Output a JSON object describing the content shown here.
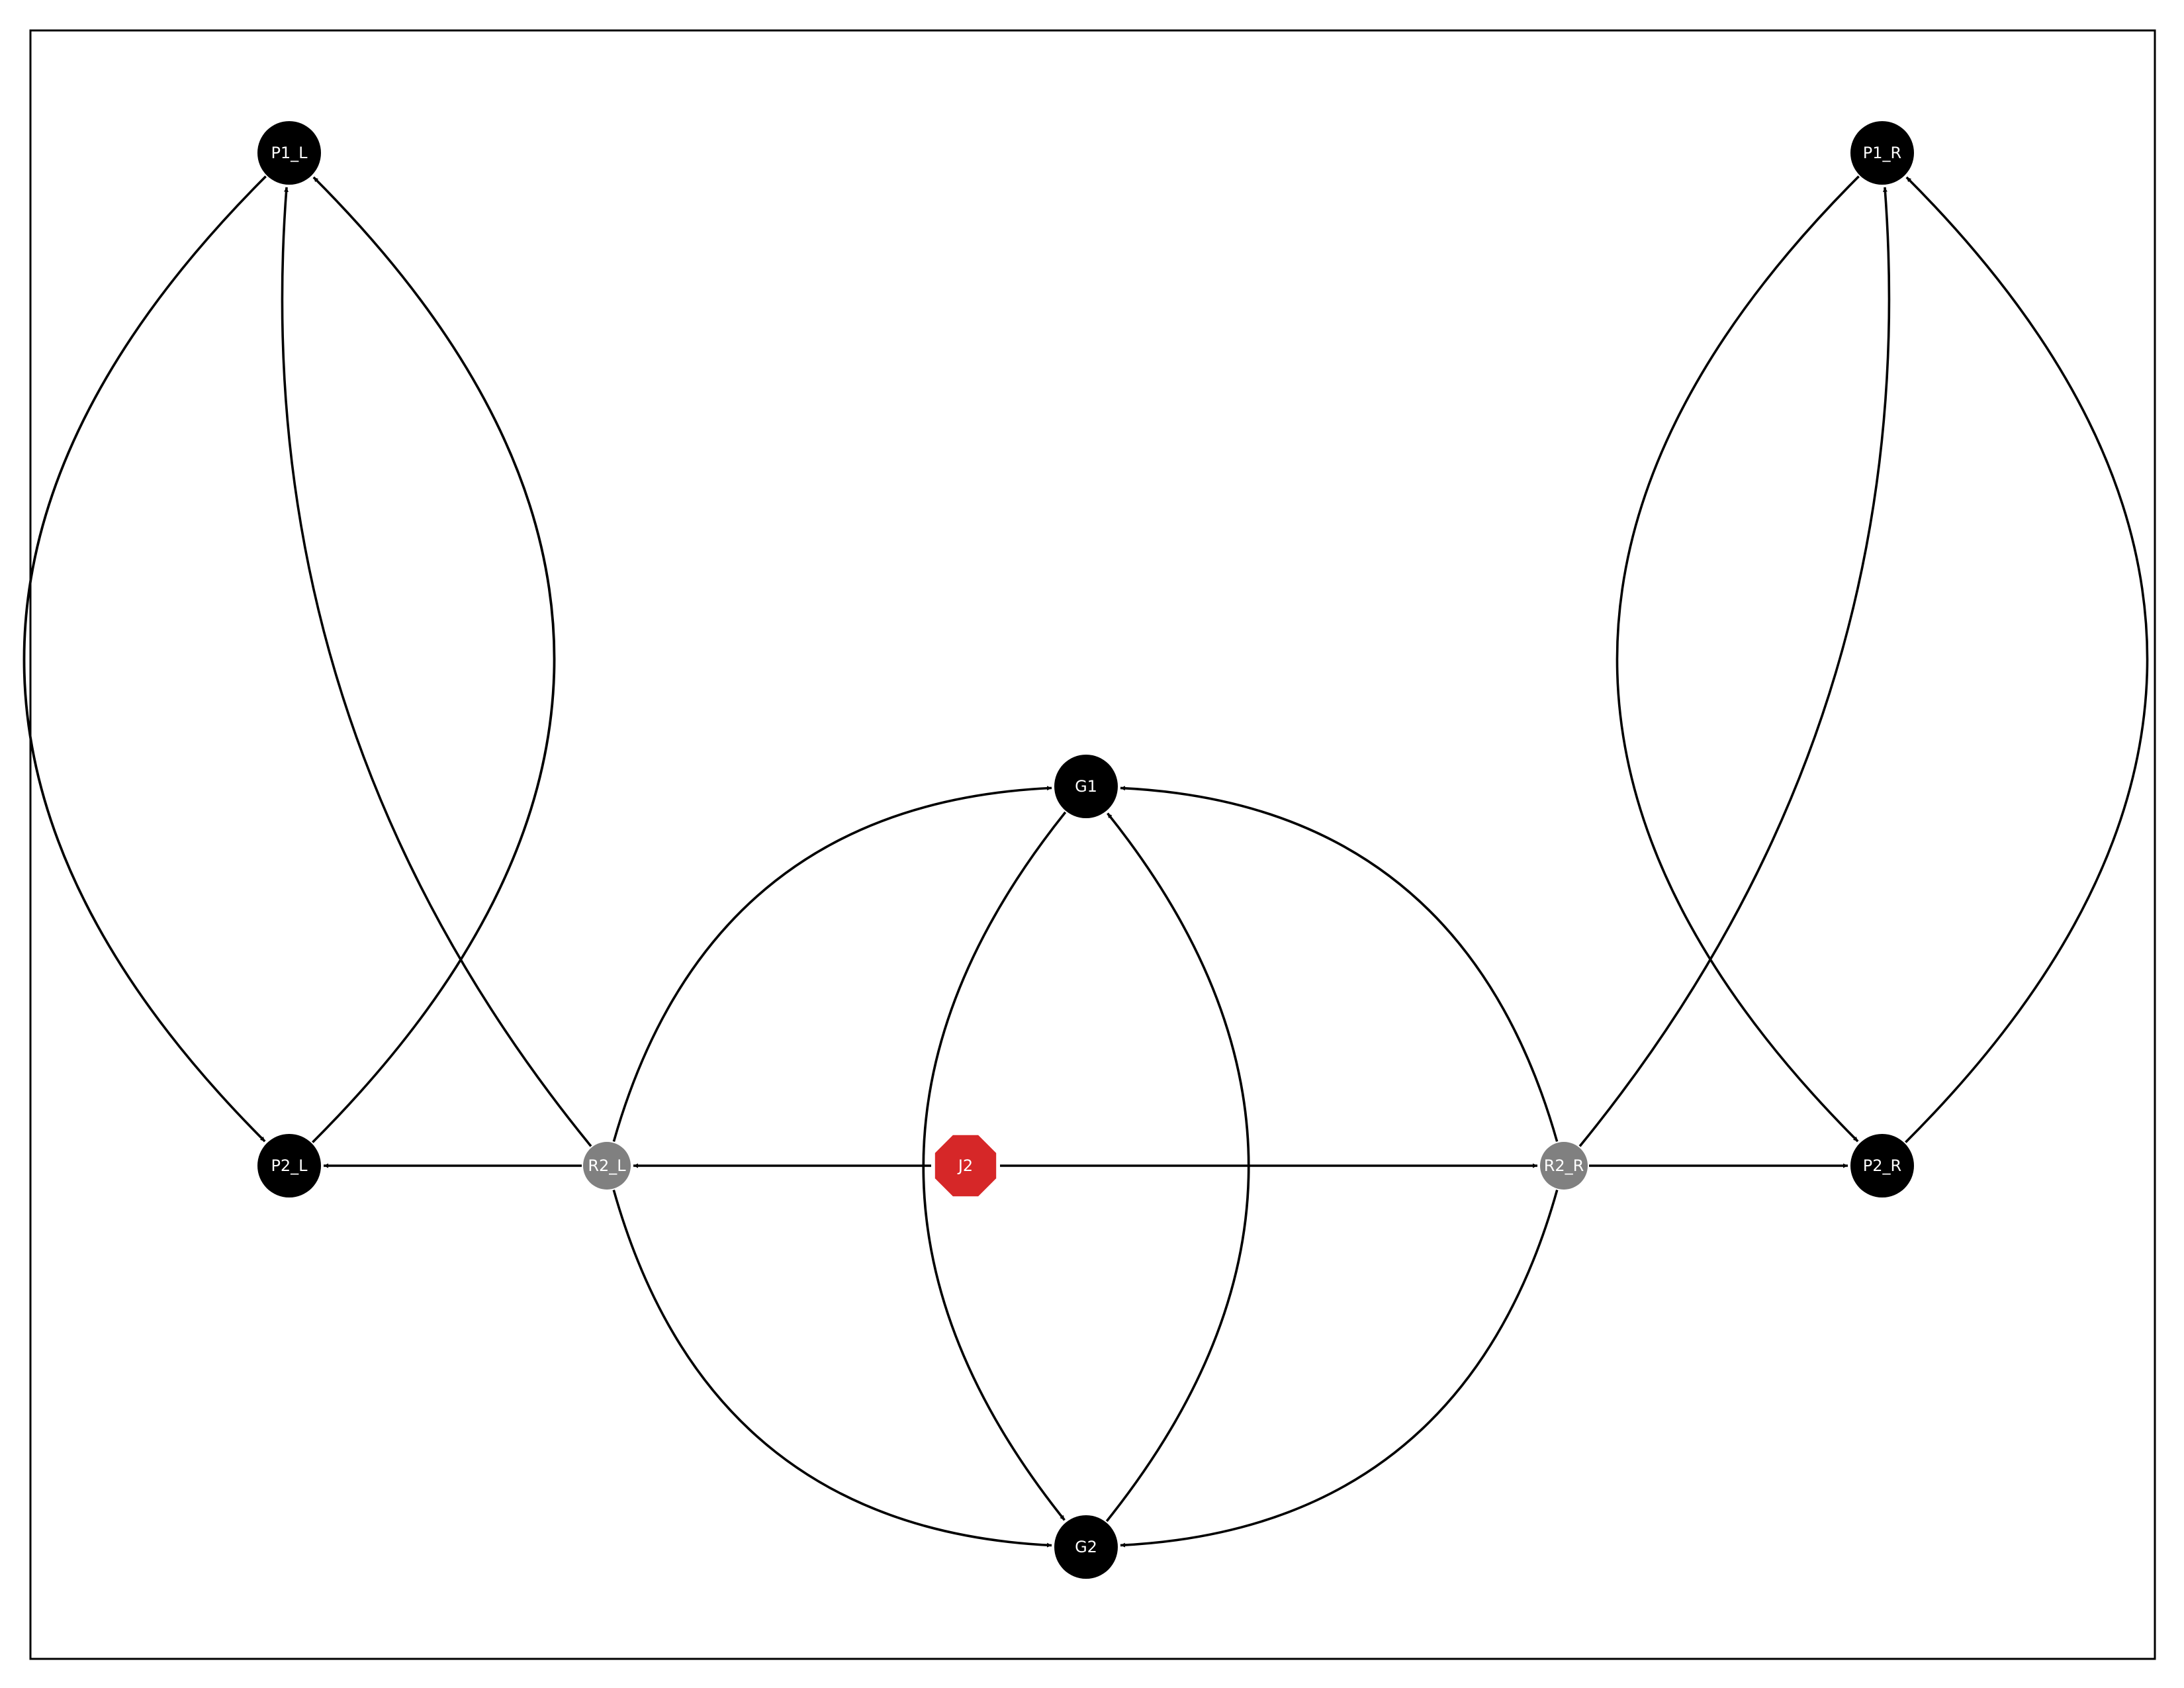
{
  "graph": {
    "nodes": [
      {
        "id": "P1_L",
        "label": "P1_L",
        "shape": "circle",
        "color": "#000000"
      },
      {
        "id": "P1_R",
        "label": "P1_R",
        "shape": "circle",
        "color": "#000000"
      },
      {
        "id": "G1",
        "label": "G1",
        "shape": "circle",
        "color": "#000000"
      },
      {
        "id": "P2_L",
        "label": "P2_L",
        "shape": "circle",
        "color": "#000000"
      },
      {
        "id": "R2_L",
        "label": "R2_L",
        "shape": "circle",
        "color": "#808080"
      },
      {
        "id": "J2",
        "label": "J2",
        "shape": "octagon",
        "color": "#d62728"
      },
      {
        "id": "R2_R",
        "label": "R2_R",
        "shape": "circle",
        "color": "#808080"
      },
      {
        "id": "P2_R",
        "label": "P2_R",
        "shape": "circle",
        "color": "#000000"
      },
      {
        "id": "G2",
        "label": "G2",
        "shape": "circle",
        "color": "#000000"
      }
    ],
    "edges": [
      {
        "source": "P1_L",
        "target": "P2_L"
      },
      {
        "source": "P2_L",
        "target": "P1_L"
      },
      {
        "source": "R2_L",
        "target": "P1_L"
      },
      {
        "source": "R2_L",
        "target": "P2_L"
      },
      {
        "source": "R2_L",
        "target": "G1"
      },
      {
        "source": "R2_L",
        "target": "G2"
      },
      {
        "source": "J2",
        "target": "R2_L"
      },
      {
        "source": "J2",
        "target": "R2_R"
      },
      {
        "source": "G1",
        "target": "G2"
      },
      {
        "source": "G2",
        "target": "G1"
      },
      {
        "source": "R2_R",
        "target": "G1"
      },
      {
        "source": "R2_R",
        "target": "G2"
      },
      {
        "source": "R2_R",
        "target": "P1_R"
      },
      {
        "source": "R2_R",
        "target": "P2_R"
      },
      {
        "source": "P1_R",
        "target": "P2_R"
      },
      {
        "source": "P2_R",
        "target": "P1_R"
      }
    ]
  }
}
